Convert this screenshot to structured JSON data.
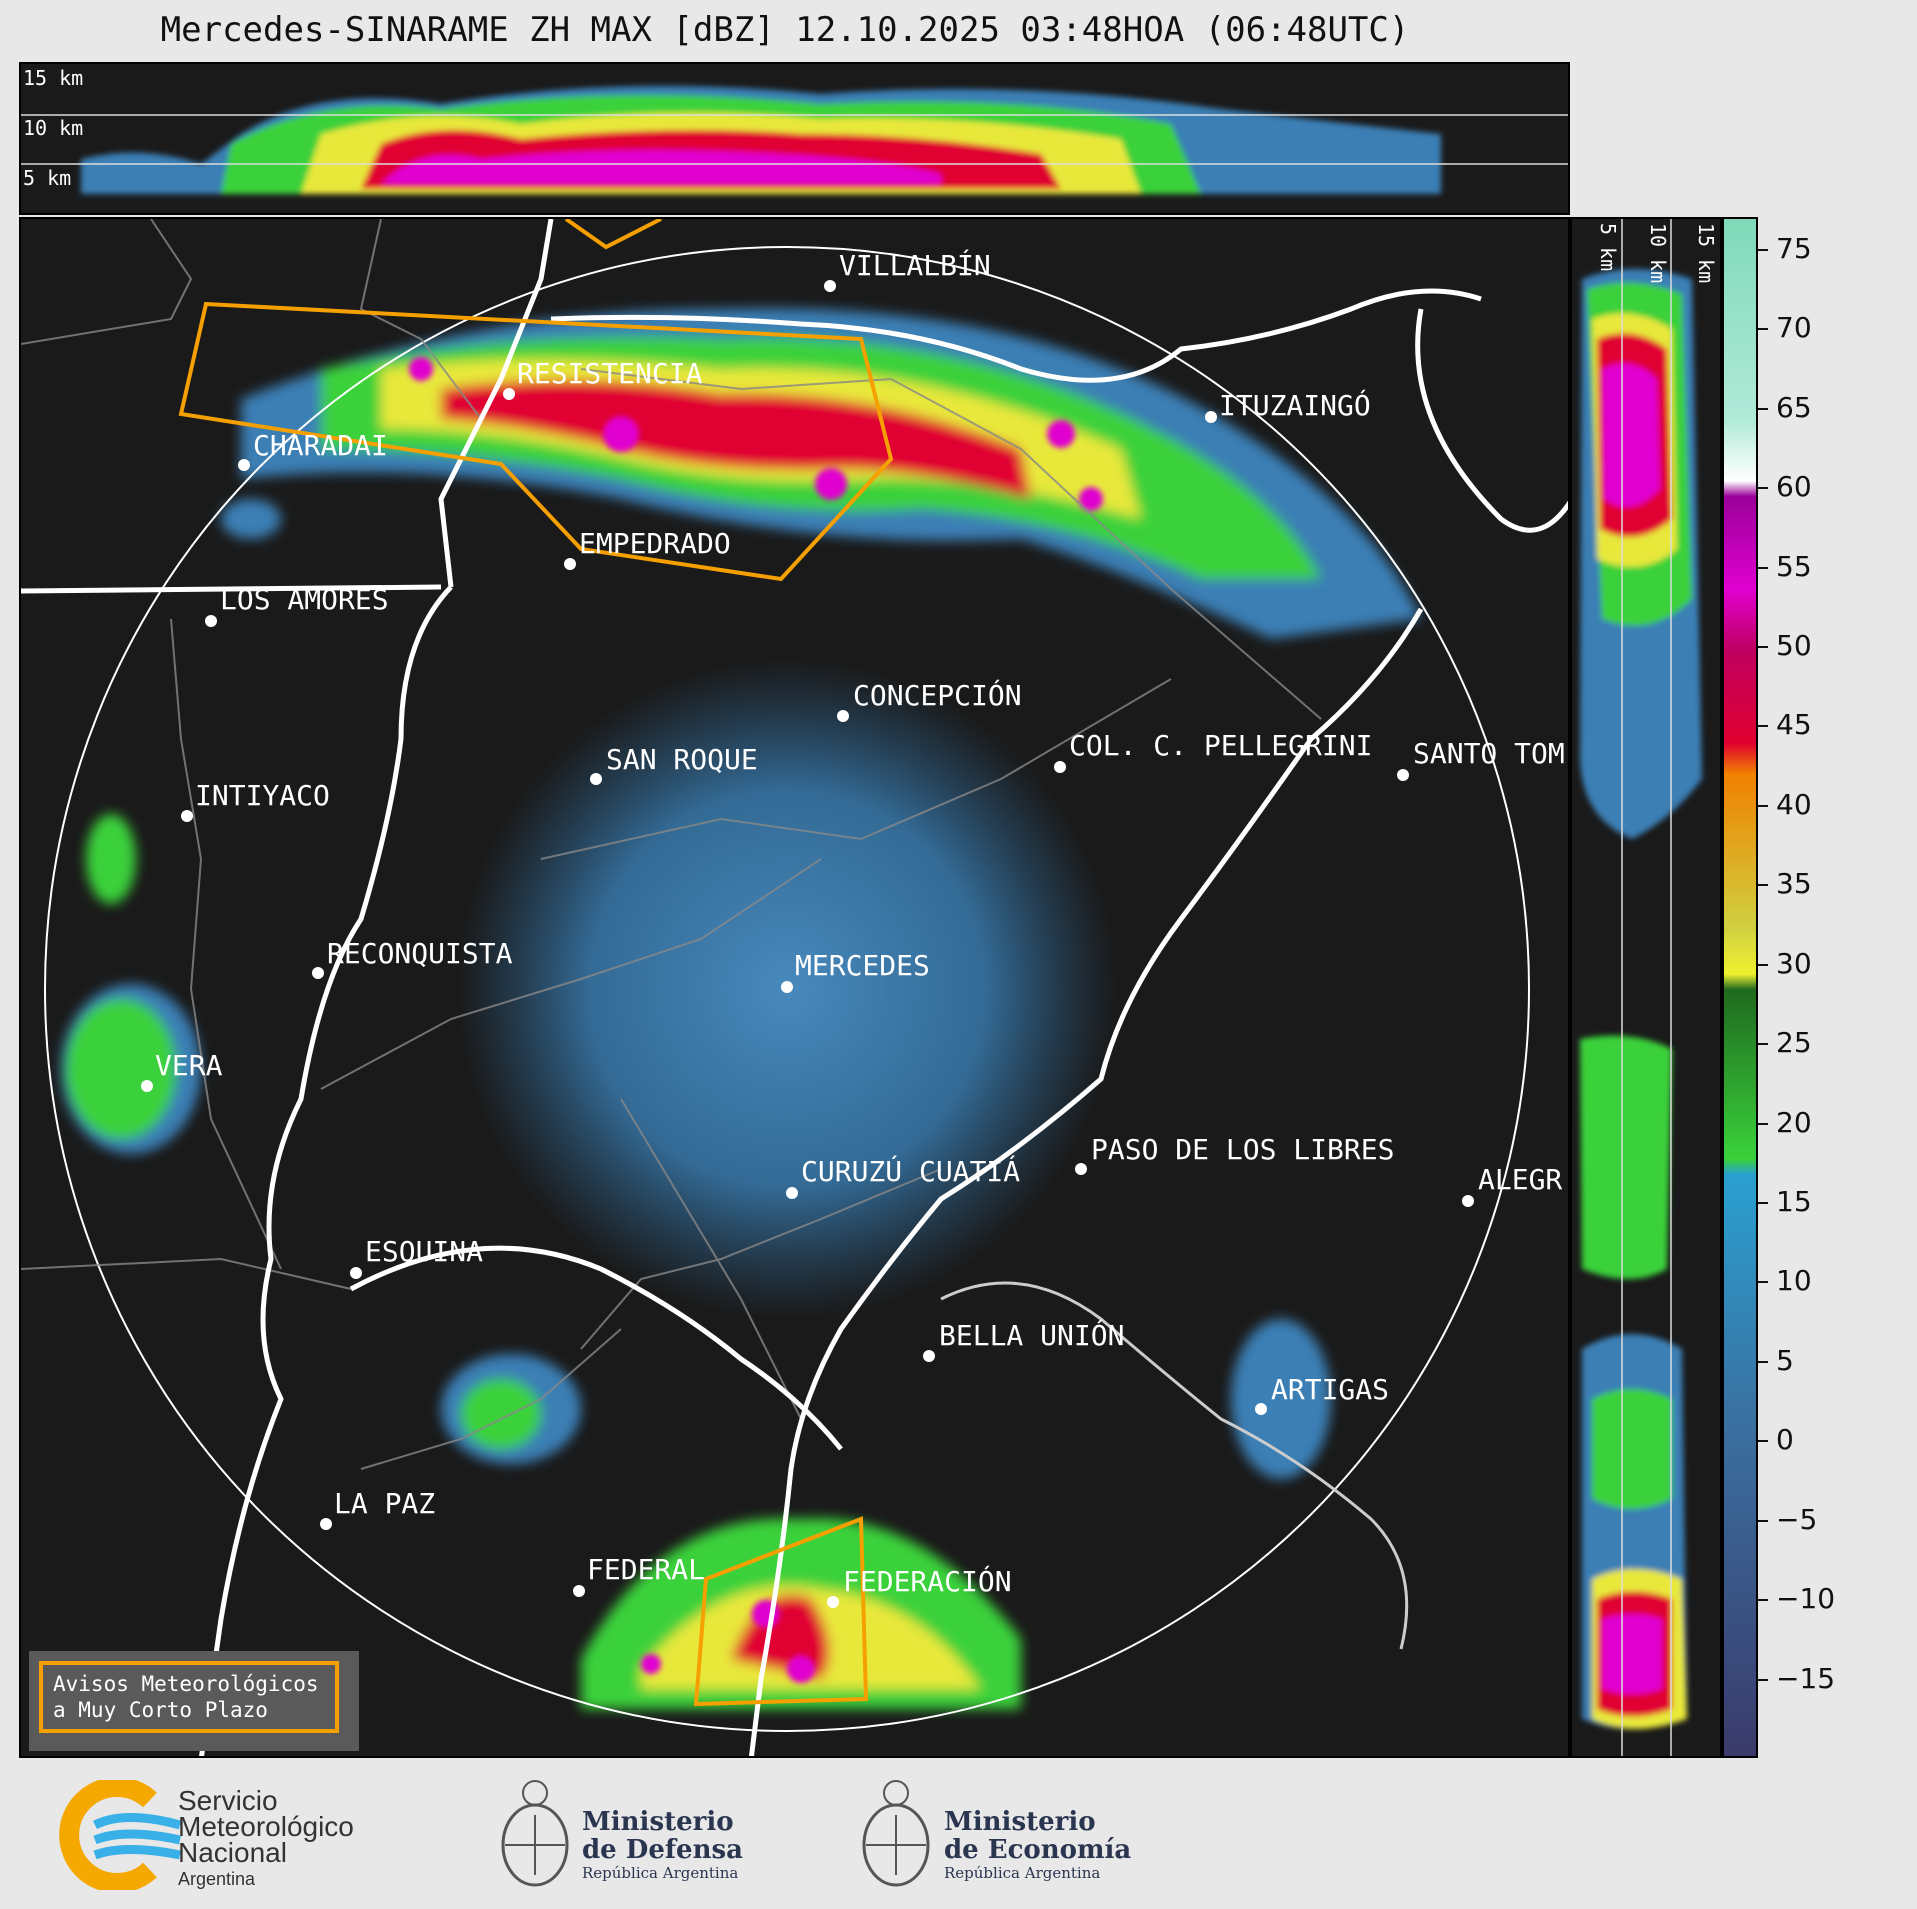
{
  "title": "Mercedes-SINARAME ZH MAX [dBZ] 12.10.2025 03:48HOA (06:48UTC)",
  "top_panel": {
    "altitude_labels": [
      "15 km",
      "10 km",
      "5 km"
    ]
  },
  "side_panel": {
    "altitude_labels": [
      "5 km",
      "10 km",
      "15 km"
    ]
  },
  "colorbar": {
    "unit": "dBZ",
    "min": -20,
    "max": 77,
    "ticks": [
      "75",
      "70",
      "65",
      "60",
      "55",
      "50",
      "45",
      "40",
      "35",
      "30",
      "25",
      "20",
      "15",
      "10",
      "5",
      "0",
      "−5",
      "−10",
      "−15"
    ]
  },
  "cities": [
    {
      "name": "VILLALBÍN"
    },
    {
      "name": "RESISTENCIA"
    },
    {
      "name": "ITUZAINGÓ"
    },
    {
      "name": "CHARADAI"
    },
    {
      "name": "EMPEDRADO"
    },
    {
      "name": "LOS AMORES"
    },
    {
      "name": "CONCEPCIÓN"
    },
    {
      "name": "SAN ROQUE"
    },
    {
      "name": "COL. C. PELLEGRINI"
    },
    {
      "name": "SANTO TOM"
    },
    {
      "name": "INTIYACO"
    },
    {
      "name": "RECONQUISTA"
    },
    {
      "name": "MERCEDES"
    },
    {
      "name": "VERA"
    },
    {
      "name": "PASO DE LOS LIBRES"
    },
    {
      "name": "CURUZÚ CUATIÁ"
    },
    {
      "name": "ALEGR"
    },
    {
      "name": "ESQUINA"
    },
    {
      "name": "BELLA UNIÓN"
    },
    {
      "name": "ARTIGAS"
    },
    {
      "name": "LA PAZ"
    },
    {
      "name": "FEDERAL"
    },
    {
      "name": "FEDERACIÓN"
    }
  ],
  "warning_box": {
    "line1": "Avisos Meteorológicos",
    "line2": "a Muy Corto Plazo"
  },
  "logos": {
    "smn": {
      "line1": "Servicio",
      "line2": "Meteorológico",
      "line3": "Nacional",
      "line4": "Argentina"
    },
    "defensa": {
      "line1": "Ministerio",
      "line2": "de Defensa",
      "line3": "República Argentina"
    },
    "economia": {
      "line1": "Ministerio",
      "line2": "de Economía",
      "line3": "República Argentina"
    }
  },
  "colors": {
    "background": "#1a1a1a",
    "weak_echo": "#3a7fb5",
    "moderate": "#3ad13a",
    "heavy": "#e8e83a",
    "intense": "#e00030",
    "extreme": "#e000d0",
    "warning_polygon": "#f5a000"
  }
}
